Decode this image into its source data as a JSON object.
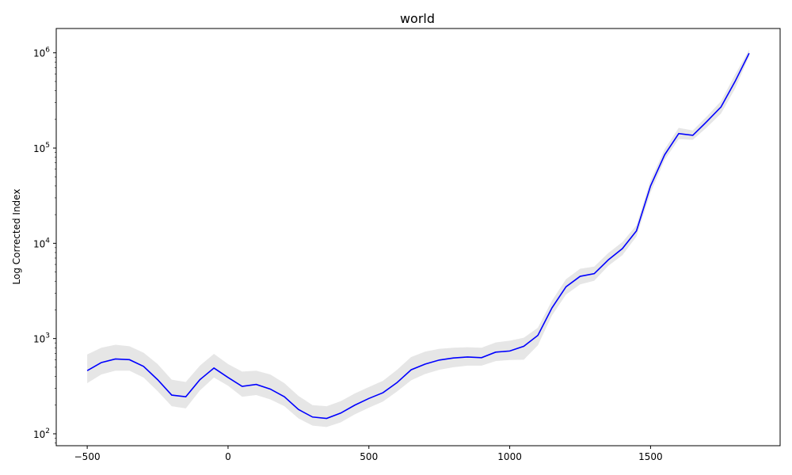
{
  "chart_data": {
    "type": "line",
    "title": "world",
    "xlabel": "",
    "ylabel": "Log Corrected Index",
    "yscale": "log",
    "xlim": [
      -610,
      1960
    ],
    "ylim": [
      75,
      1800000
    ],
    "grid": false,
    "legend": "none",
    "x_ticks": [
      {
        "value": -500,
        "label": "−500"
      },
      {
        "value": 0,
        "label": "0"
      },
      {
        "value": 500,
        "label": "500"
      },
      {
        "value": 1000,
        "label": "1000"
      },
      {
        "value": 1500,
        "label": "1500"
      }
    ],
    "y_ticks": [
      {
        "value": 100,
        "base": "10",
        "exp": "2"
      },
      {
        "value": 1000,
        "base": "10",
        "exp": "3"
      },
      {
        "value": 10000,
        "base": "10",
        "exp": "4"
      },
      {
        "value": 100000,
        "base": "10",
        "exp": "5"
      },
      {
        "value": 1000000,
        "base": "10",
        "exp": "6"
      }
    ],
    "series": [
      {
        "color": "#0000ff",
        "band_color": "#e6e6e6",
        "x": [
          -500,
          -450,
          -400,
          -350,
          -300,
          -250,
          -200,
          -150,
          -100,
          -50,
          0,
          50,
          100,
          150,
          200,
          250,
          300,
          350,
          400,
          450,
          500,
          550,
          600,
          650,
          700,
          750,
          800,
          850,
          900,
          950,
          1000,
          1050,
          1100,
          1150,
          1200,
          1250,
          1300,
          1350,
          1400,
          1450,
          1500,
          1550,
          1600,
          1650,
          1700,
          1750,
          1800,
          1850
        ],
        "values": [
          460,
          560,
          610,
          600,
          510,
          370,
          255,
          245,
          370,
          490,
          390,
          315,
          330,
          295,
          245,
          180,
          150,
          145,
          165,
          200,
          235,
          270,
          345,
          470,
          540,
          595,
          625,
          640,
          630,
          720,
          740,
          830,
          1080,
          2100,
          3500,
          4500,
          4800,
          6700,
          8800,
          13500,
          40000,
          85000,
          142000,
          136000,
          190000,
          270000,
          500000,
          990000
        ],
        "lower": [
          340,
          420,
          460,
          460,
          390,
          280,
          195,
          185,
          285,
          390,
          320,
          245,
          255,
          230,
          195,
          145,
          122,
          118,
          132,
          160,
          188,
          218,
          278,
          365,
          425,
          470,
          500,
          520,
          520,
          580,
          595,
          600,
          850,
          1750,
          2900,
          3700,
          4050,
          5800,
          7500,
          11800,
          34000,
          75000,
          124000,
          122000,
          165000,
          230000,
          420000,
          920000
        ],
        "upper": [
          680,
          800,
          860,
          830,
          710,
          540,
          370,
          350,
          520,
          690,
          540,
          450,
          460,
          420,
          340,
          250,
          200,
          195,
          220,
          265,
          310,
          360,
          470,
          640,
          730,
          780,
          800,
          810,
          800,
          910,
          950,
          1020,
          1300,
          2500,
          4200,
          5400,
          5700,
          7900,
          10300,
          15500,
          46000,
          97000,
          163000,
          153000,
          215000,
          310000,
          590000,
          1080000
        ]
      }
    ]
  }
}
